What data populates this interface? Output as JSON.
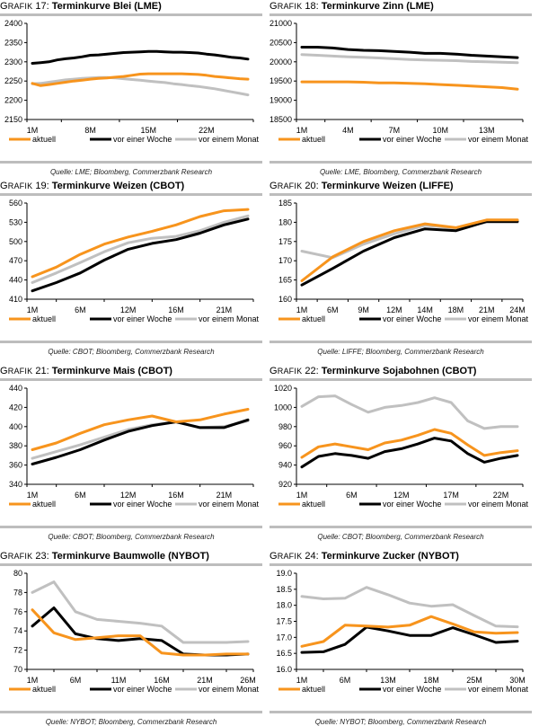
{
  "legend_labels": [
    "aktuell",
    "vor einer Woche",
    "vor einem Monat"
  ],
  "series_colors": [
    "#f7941d",
    "#000000",
    "#c0c0c0"
  ],
  "chart_data": [
    {
      "id": "g17",
      "label_prefix": "Grafik",
      "number": "17:",
      "title": "Terminkurve Blei (LME)",
      "type": "line",
      "ylim": [
        2150,
        2400
      ],
      "yticks": [
        2150,
        2200,
        2250,
        2300,
        2350,
        2400
      ],
      "xtick_labels": [
        "1M",
        "8M",
        "15M",
        "22M"
      ],
      "xtick_positions": [
        0,
        7,
        14,
        21
      ],
      "n_points": 27,
      "series": [
        {
          "name": "aktuell",
          "values": [
            2244,
            2238,
            2241,
            2244,
            2247,
            2250,
            2252,
            2255,
            2257,
            2258,
            2260,
            2262,
            2265,
            2268,
            2269,
            2269,
            2269,
            2269,
            2269,
            2268,
            2267,
            2265,
            2262,
            2260,
            2258,
            2256,
            2255
          ]
        },
        {
          "name": "vor einer Woche",
          "values": [
            2296,
            2298,
            2300,
            2305,
            2308,
            2310,
            2313,
            2317,
            2318,
            2320,
            2322,
            2324,
            2325,
            2326,
            2327,
            2327,
            2326,
            2325,
            2325,
            2324,
            2323,
            2320,
            2318,
            2315,
            2312,
            2310,
            2307
          ]
        },
        {
          "name": "vor einem Monat",
          "values": [
            2243,
            2244,
            2247,
            2250,
            2253,
            2255,
            2257,
            2258,
            2259,
            2259,
            2258,
            2256,
            2254,
            2252,
            2250,
            2248,
            2246,
            2243,
            2241,
            2238,
            2236,
            2233,
            2230,
            2226,
            2222,
            2218,
            2214
          ]
        }
      ],
      "source": "Quelle: LME; Bloomberg, Commerzbank Research"
    },
    {
      "id": "g18",
      "label_prefix": "Grafik",
      "number": "18:",
      "title": "Terminkurve Zinn (LME)",
      "type": "line",
      "ylim": [
        18500,
        21000
      ],
      "yticks": [
        18500,
        19000,
        19500,
        20000,
        20500,
        21000
      ],
      "xtick_labels": [
        "1M",
        "4M",
        "7M",
        "10M",
        "13M"
      ],
      "xtick_positions": [
        0,
        3,
        6,
        9,
        12
      ],
      "n_points": 15,
      "series": [
        {
          "name": "aktuell",
          "values": [
            19480,
            19480,
            19480,
            19480,
            19470,
            19450,
            19450,
            19440,
            19430,
            19410,
            19390,
            19370,
            19350,
            19330,
            19290
          ]
        },
        {
          "name": "vor einer Woche",
          "values": [
            20380,
            20380,
            20360,
            20320,
            20300,
            20290,
            20270,
            20250,
            20220,
            20220,
            20200,
            20170,
            20150,
            20130,
            20110
          ]
        },
        {
          "name": "vor einem Monat",
          "values": [
            20190,
            20170,
            20150,
            20130,
            20120,
            20100,
            20080,
            20060,
            20050,
            20040,
            20030,
            20010,
            20000,
            19990,
            19980
          ]
        }
      ],
      "source": "Quelle: LME, Bloomberg, Commerzbank Research"
    },
    {
      "id": "g19",
      "label_prefix": "Grafik",
      "number": "19:",
      "title": "Terminkurve Weizen (CBOT)",
      "type": "line",
      "ylim": [
        410,
        560
      ],
      "yticks": [
        410,
        440,
        470,
        500,
        530,
        560
      ],
      "xtick_labels": [
        "1M",
        "6M",
        "12M",
        "16M",
        "21M"
      ],
      "xtick_positions": [
        0,
        2,
        4,
        6,
        8
      ],
      "n_points": 10,
      "series": [
        {
          "name": "aktuell",
          "values": [
            445,
            460,
            480,
            496,
            507,
            516,
            526,
            539,
            548,
            550
          ]
        },
        {
          "name": "vor einer Woche",
          "values": [
            423,
            436,
            451,
            471,
            488,
            497,
            503,
            513,
            526,
            535
          ]
        },
        {
          "name": "vor einem Monat",
          "values": [
            436,
            451,
            467,
            484,
            498,
            505,
            508,
            517,
            530,
            540
          ]
        }
      ],
      "source": "Quelle: CBOT; Bloomberg, Commerzbank Research"
    },
    {
      "id": "g20",
      "label_prefix": "Grafik",
      "number": "20:",
      "title": "Terminkurve Weizen (LIFFE)",
      "type": "line",
      "ylim": [
        160,
        185
      ],
      "yticks": [
        160,
        165,
        170,
        175,
        180,
        185
      ],
      "xtick_labels": [
        "1M",
        "6M",
        "9M",
        "12M",
        "14M",
        "18M",
        "21M",
        "24M"
      ],
      "xtick_positions": [
        0,
        1,
        2,
        3,
        4,
        5,
        6,
        7
      ],
      "n_points": 8,
      "series": [
        {
          "name": "aktuell",
          "values": [
            164.8,
            171.0,
            175.0,
            177.8,
            179.6,
            178.6,
            180.6,
            180.6
          ]
        },
        {
          "name": "vor einer Woche",
          "values": [
            163.7,
            168.0,
            172.5,
            176.0,
            178.3,
            177.8,
            180.2,
            180.2
          ]
        },
        {
          "name": "vor einem Monat",
          "values": [
            172.5,
            170.8,
            174.3,
            177.0,
            179.2,
            178.5,
            180.0,
            180.0
          ]
        }
      ],
      "source": "Quelle: LIFFE; Bloomberg, Commerzbank Research"
    },
    {
      "id": "g21",
      "label_prefix": "Grafik",
      "number": "21:",
      "title": "Terminkurve Mais (CBOT)",
      "type": "line",
      "ylim": [
        340,
        440
      ],
      "yticks": [
        340,
        360,
        380,
        400,
        420,
        440
      ],
      "xtick_labels": [
        "1M",
        "6M",
        "12M",
        "16M",
        "21M"
      ],
      "xtick_positions": [
        0,
        2,
        4,
        6,
        8
      ],
      "n_points": 10,
      "series": [
        {
          "name": "aktuell",
          "values": [
            376,
            383,
            393,
            402,
            407,
            411,
            405,
            407,
            413,
            418
          ]
        },
        {
          "name": "vor einer Woche",
          "values": [
            361,
            368,
            376,
            386,
            395,
            401,
            405,
            399,
            399,
            407
          ]
        },
        {
          "name": "vor einem Monat",
          "values": [
            367,
            374,
            381,
            389,
            397,
            402,
            405,
            399,
            400,
            406
          ]
        }
      ],
      "source": "Quelle: CBOT; Bloomberg, Commerzbank Research"
    },
    {
      "id": "g22",
      "label_prefix": "Grafik",
      "number": "22:",
      "title": "Terminkurve Sojabohnen (CBOT)",
      "type": "line",
      "ylim": [
        920,
        1020
      ],
      "yticks": [
        920,
        940,
        960,
        980,
        1000,
        1020
      ],
      "xtick_labels": [
        "1M",
        "6M",
        "12M",
        "17M",
        "22M"
      ],
      "xtick_positions": [
        0,
        3,
        6,
        9,
        12
      ],
      "n_points": 14,
      "series": [
        {
          "name": "aktuell",
          "values": [
            948,
            959,
            962,
            959,
            956,
            963,
            966,
            971,
            977,
            973,
            961,
            950,
            953,
            955
          ]
        },
        {
          "name": "vor einer Woche",
          "values": [
            938,
            949,
            952,
            950,
            947,
            954,
            957,
            962,
            968,
            965,
            952,
            943,
            947,
            950
          ]
        },
        {
          "name": "vor einem Monat",
          "values": [
            1001,
            1011,
            1012,
            1003,
            995,
            1000,
            1002,
            1005,
            1010,
            1005,
            986,
            978,
            980,
            980
          ]
        }
      ],
      "source": "Quelle: CBOT; Bloomberg, Commerzbank Research"
    },
    {
      "id": "g23",
      "label_prefix": "Grafik",
      "number": "23:",
      "title": "Terminkurve Baumwolle (NYBOT)",
      "type": "line",
      "ylim": [
        70,
        80
      ],
      "yticks": [
        70,
        72,
        74,
        76,
        78,
        80
      ],
      "xtick_labels": [
        "1M",
        "6M",
        "11M",
        "16M",
        "21M",
        "26M"
      ],
      "xtick_positions": [
        0,
        2,
        4,
        6,
        8,
        10
      ],
      "n_points": 11,
      "series": [
        {
          "name": "aktuell",
          "values": [
            76.2,
            73.8,
            73.1,
            73.3,
            73.5,
            73.5,
            71.7,
            71.5,
            71.5,
            71.6,
            71.6
          ]
        },
        {
          "name": "vor einer Woche",
          "values": [
            74.5,
            76.4,
            73.7,
            73.2,
            73.0,
            73.2,
            73.0,
            71.6,
            71.5,
            71.5,
            71.6
          ]
        },
        {
          "name": "vor einem Monat",
          "values": [
            78.0,
            79.1,
            76.0,
            75.2,
            75.0,
            74.8,
            74.5,
            72.8,
            72.8,
            72.8,
            72.9
          ]
        }
      ],
      "source": "Quelle: NYBOT; Bloomberg, Commerzbank Research"
    },
    {
      "id": "g24",
      "label_prefix": "Grafik",
      "number": "24:",
      "title": "Terminkurve Zucker (NYBOT)",
      "type": "line",
      "ylim": [
        16.0,
        19.0
      ],
      "yticks": [
        16.0,
        16.5,
        17.0,
        17.5,
        18.0,
        18.5,
        19.0
      ],
      "ytick_decimals": 1,
      "xtick_labels": [
        "1M",
        "6M",
        "13M",
        "18M",
        "25M",
        "30M"
      ],
      "xtick_positions": [
        0,
        2,
        4,
        6,
        8,
        10
      ],
      "n_points": 11,
      "series": [
        {
          "name": "aktuell",
          "values": [
            16.72,
            16.87,
            17.38,
            17.35,
            17.32,
            17.38,
            17.65,
            17.42,
            17.17,
            17.13,
            17.15
          ]
        },
        {
          "name": "vor einer Woche",
          "values": [
            16.53,
            16.55,
            16.78,
            17.32,
            17.2,
            17.06,
            17.06,
            17.3,
            17.08,
            16.84,
            16.88
          ]
        },
        {
          "name": "vor einem Monat",
          "values": [
            18.28,
            18.2,
            18.22,
            18.56,
            18.33,
            18.07,
            17.97,
            18.02,
            17.68,
            17.35,
            17.33
          ]
        }
      ],
      "source": "Quelle: NYBOT; Bloomberg, Commerzbank Research"
    }
  ]
}
